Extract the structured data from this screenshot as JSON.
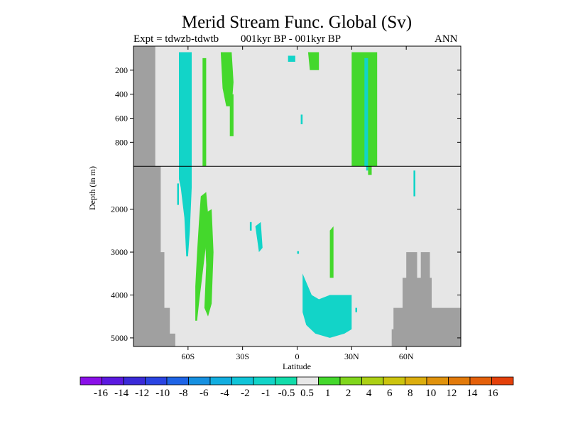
{
  "header": {
    "title": "Merid Stream Func. Global (Sv)",
    "expt": "Expt = tdwzb-tdwtb",
    "period": "001kyr BP - 001kyr BP",
    "season": "ANN"
  },
  "colors": {
    "land": "#a0a0a0",
    "ocean_background": "#e6e6e6",
    "frame": "#000000"
  },
  "chart_data": {
    "type": "heatmap",
    "title": "Merid Stream Func. Global (Sv)",
    "xlabel": "Latitude",
    "ylabel": "Depth (in m)",
    "xlim": [
      -90,
      90
    ],
    "x_ticks": [
      {
        "value": -60,
        "label": "60S"
      },
      {
        "value": -30,
        "label": "30S"
      },
      {
        "value": 0,
        "label": "0"
      },
      {
        "value": 30,
        "label": "30N"
      },
      {
        "value": 60,
        "label": "60N"
      }
    ],
    "y_upper_ticks": [
      {
        "value": 200,
        "label": "200"
      },
      {
        "value": 400,
        "label": "400"
      },
      {
        "value": 600,
        "label": "600"
      },
      {
        "value": 800,
        "label": "800"
      }
    ],
    "y_lower_ticks": [
      {
        "value": 2000,
        "label": "2000"
      },
      {
        "value": 3000,
        "label": "3000"
      },
      {
        "value": 4000,
        "label": "4000"
      },
      {
        "value": 5000,
        "label": "5000"
      }
    ],
    "y_upper_range": [
      0,
      1000
    ],
    "y_lower_range": [
      1000,
      5200
    ],
    "y_lower_fraction": 0.6,
    "colorbar": {
      "labels": [
        "-16",
        "-14",
        "-12",
        "-10",
        "-8",
        "-6",
        "-4",
        "-2",
        "-1",
        "-0.5",
        "0.5",
        "1",
        "2",
        "4",
        "6",
        "8",
        "10",
        "12",
        "14",
        "16"
      ],
      "colors": [
        "#8a10e8",
        "#5b19e0",
        "#3a2ad8",
        "#2a44e2",
        "#1e64e6",
        "#1690e0",
        "#12aee0",
        "#10c4d8",
        "#12d4c8",
        "#12dcaa",
        "#e8e8e8",
        "#44d82c",
        "#80d61c",
        "#acd014",
        "#ccc40e",
        "#dcae0e",
        "#e0920c",
        "#e27a0a",
        "#e4600a",
        "#e4400a"
      ]
    },
    "regions": [
      {
        "name": "antarctic-land",
        "value": "land",
        "polygon": [
          [
            -90,
            0
          ],
          [
            -78,
            0
          ],
          [
            -78,
            1000
          ],
          [
            -75,
            1000
          ],
          [
            -75,
            3000
          ],
          [
            -73,
            3000
          ],
          [
            -73,
            4300
          ],
          [
            -70,
            4300
          ],
          [
            -70,
            4900
          ],
          [
            -67,
            4900
          ],
          [
            -67,
            5200
          ],
          [
            -90,
            5200
          ]
        ]
      },
      {
        "name": "arctic-land",
        "value": "land",
        "polygon": [
          [
            52,
            5200
          ],
          [
            52,
            4800
          ],
          [
            53,
            4800
          ],
          [
            53,
            4300
          ],
          [
            58,
            4300
          ],
          [
            58,
            3600
          ],
          [
            60,
            3600
          ],
          [
            60,
            3000
          ],
          [
            66,
            3000
          ],
          [
            66,
            3600
          ],
          [
            68,
            3600
          ],
          [
            68,
            3000
          ],
          [
            73,
            3000
          ],
          [
            73,
            3600
          ],
          [
            74,
            3600
          ],
          [
            74,
            4300
          ],
          [
            90,
            4300
          ],
          [
            90,
            5200
          ]
        ]
      },
      {
        "name": "so-cell-upper",
        "value": "-1",
        "polygon": [
          [
            -65,
            50
          ],
          [
            -58,
            50
          ],
          [
            -58,
            1000
          ],
          [
            -65,
            1000
          ]
        ]
      },
      {
        "name": "so-cell-lower",
        "value": "-1",
        "polygon": [
          [
            -65,
            1000
          ],
          [
            -58,
            1000
          ],
          [
            -58,
            1500
          ],
          [
            -59,
            2500
          ],
          [
            -60,
            3100
          ],
          [
            -61,
            3100
          ],
          [
            -62,
            2200
          ],
          [
            -64,
            1500
          ],
          [
            -65,
            1300
          ]
        ]
      },
      {
        "name": "so-patch-west",
        "value": "-1",
        "polygon": [
          [
            -66,
            1400
          ],
          [
            -65,
            1400
          ],
          [
            -65,
            1900
          ],
          [
            -66,
            1900
          ]
        ]
      },
      {
        "name": "so-cell-right-edge",
        "value": "1",
        "polygon": [
          [
            -52,
            100
          ],
          [
            -50,
            100
          ],
          [
            -50,
            1000
          ],
          [
            -52,
            1000
          ]
        ]
      },
      {
        "name": "deep-positive-a",
        "value": "1",
        "polygon": [
          [
            -53,
            1700
          ],
          [
            -50,
            1600
          ],
          [
            -49,
            2100
          ],
          [
            -50,
            2800
          ],
          [
            -52,
            3500
          ],
          [
            -54,
            4200
          ],
          [
            -55,
            4600
          ],
          [
            -56,
            4600
          ],
          [
            -56,
            3800
          ],
          [
            -55,
            3000
          ],
          [
            -54,
            2300
          ]
        ]
      },
      {
        "name": "deep-positive-b",
        "value": "1",
        "polygon": [
          [
            -51,
            2100
          ],
          [
            -47,
            2000
          ],
          [
            -46,
            3000
          ],
          [
            -47,
            4200
          ],
          [
            -49,
            4500
          ],
          [
            -51,
            4300
          ],
          [
            -50,
            3300
          ]
        ]
      },
      {
        "name": "subtropical-s",
        "value": "1",
        "polygon": [
          [
            -42,
            50
          ],
          [
            -36,
            50
          ],
          [
            -35,
            300
          ],
          [
            -36,
            500
          ],
          [
            -39,
            500
          ],
          [
            -41,
            350
          ]
        ]
      },
      {
        "name": "subtropical-s-tail",
        "value": "1",
        "polygon": [
          [
            -37,
            400
          ],
          [
            -35,
            400
          ],
          [
            -35,
            750
          ],
          [
            -37,
            750
          ]
        ]
      },
      {
        "name": "mid-patch-a",
        "value": "-1",
        "polygon": [
          [
            -23,
            2400
          ],
          [
            -20,
            2300
          ],
          [
            -19,
            2900
          ],
          [
            -21,
            3000
          ],
          [
            -22,
            2700
          ]
        ]
      },
      {
        "name": "mid-patch-b",
        "value": "-1",
        "polygon": [
          [
            -26,
            2300
          ],
          [
            -25,
            2300
          ],
          [
            -25,
            2500
          ],
          [
            -26,
            2500
          ]
        ]
      },
      {
        "name": "eq-surface-patch",
        "value": "-1",
        "polygon": [
          [
            -5,
            80
          ],
          [
            -1,
            80
          ],
          [
            -1,
            130
          ],
          [
            -5,
            130
          ]
        ]
      },
      {
        "name": "eq-mid-patch",
        "value": "-1",
        "polygon": [
          [
            2,
            570
          ],
          [
            3,
            570
          ],
          [
            3,
            650
          ],
          [
            2,
            650
          ]
        ]
      },
      {
        "name": "eq-deep-dot",
        "value": "-1",
        "polygon": [
          [
            0,
            2980
          ],
          [
            1,
            2980
          ],
          [
            1,
            3040
          ],
          [
            0,
            3040
          ]
        ]
      },
      {
        "name": "surface-positive-n",
        "value": "1",
        "polygon": [
          [
            6,
            50
          ],
          [
            12,
            50
          ],
          [
            12,
            200
          ],
          [
            7,
            200
          ]
        ]
      },
      {
        "name": "abyssal-negative",
        "value": "-1",
        "polygon": [
          [
            3,
            3500
          ],
          [
            5,
            3700
          ],
          [
            8,
            4000
          ],
          [
            12,
            4100
          ],
          [
            18,
            4000
          ],
          [
            24,
            4000
          ],
          [
            30,
            4000
          ],
          [
            30,
            4800
          ],
          [
            26,
            4900
          ],
          [
            18,
            5000
          ],
          [
            10,
            4900
          ],
          [
            5,
            4700
          ],
          [
            3,
            4400
          ]
        ]
      },
      {
        "name": "abyssal-negative-spot",
        "value": "-1",
        "polygon": [
          [
            32,
            4300
          ],
          [
            33,
            4300
          ],
          [
            33,
            4400
          ],
          [
            32,
            4400
          ]
        ]
      },
      {
        "name": "deep-positive-thin",
        "value": "1",
        "polygon": [
          [
            18,
            2500
          ],
          [
            20,
            2400
          ],
          [
            20,
            3600
          ],
          [
            18,
            3600
          ]
        ]
      },
      {
        "name": "amoc-upper",
        "value": "1",
        "polygon": [
          [
            30,
            50
          ],
          [
            44,
            50
          ],
          [
            44,
            1000
          ],
          [
            30,
            1000
          ]
        ]
      },
      {
        "name": "amoc-lower-tail",
        "value": "1",
        "polygon": [
          [
            39,
            1000
          ],
          [
            41,
            1000
          ],
          [
            41,
            1200
          ],
          [
            39,
            1200
          ]
        ]
      },
      {
        "name": "amoc-core",
        "value": "-1",
        "polygon": [
          [
            37,
            100
          ],
          [
            39,
            100
          ],
          [
            39,
            1000
          ],
          [
            37,
            1000
          ]
        ]
      },
      {
        "name": "amoc-core-lower",
        "value": "-1",
        "polygon": [
          [
            38,
            1000
          ],
          [
            39,
            1000
          ],
          [
            39,
            1100
          ],
          [
            38,
            1100
          ]
        ]
      },
      {
        "name": "arctic-spot",
        "value": "-1",
        "polygon": [
          [
            64,
            1100
          ],
          [
            65,
            1100
          ],
          [
            65,
            1700
          ],
          [
            64,
            1700
          ]
        ]
      }
    ]
  }
}
